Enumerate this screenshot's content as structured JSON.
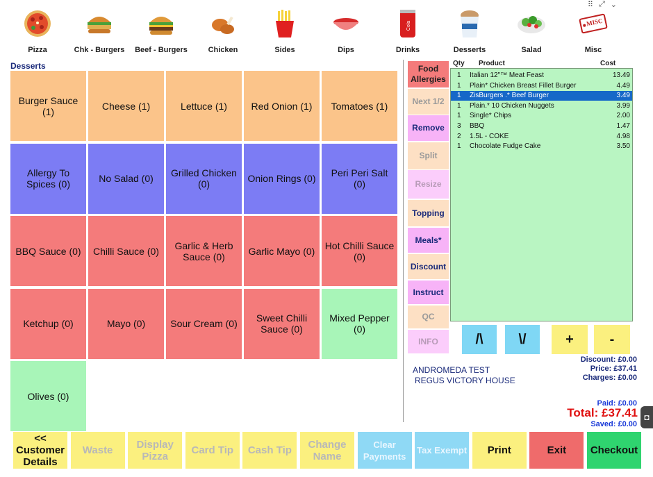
{
  "categories": [
    {
      "label": "Pizza",
      "icon": "pizza-icon"
    },
    {
      "label": "Chk - Burgers",
      "icon": "chicken-burger-icon"
    },
    {
      "label": "Beef - Burgers",
      "icon": "beef-burger-icon"
    },
    {
      "label": "Chicken",
      "icon": "chicken-icon"
    },
    {
      "label": "Sides",
      "icon": "fries-icon"
    },
    {
      "label": "Dips",
      "icon": "dip-bowl-icon"
    },
    {
      "label": "Drinks",
      "icon": "cola-can-icon"
    },
    {
      "label": "Desserts",
      "icon": "ice-cream-tub-icon"
    },
    {
      "label": "Salad",
      "icon": "salad-icon"
    },
    {
      "label": "Misc",
      "icon": "misc-tag-icon",
      "tag": "MISC"
    }
  ],
  "section_title": "Desserts",
  "options": [
    {
      "label": "Burger Sauce (1)",
      "color": "orange"
    },
    {
      "label": "Cheese (1)",
      "color": "orange"
    },
    {
      "label": "Lettuce (1)",
      "color": "orange"
    },
    {
      "label": "Red Onion (1)",
      "color": "orange"
    },
    {
      "label": "Tomatoes (1)",
      "color": "orange"
    },
    {
      "label": "Allergy To Spices (0)",
      "color": "blue"
    },
    {
      "label": "No Salad (0)",
      "color": "blue"
    },
    {
      "label": "Grilled Chicken (0)",
      "color": "blue"
    },
    {
      "label": "Onion Rings (0)",
      "color": "blue"
    },
    {
      "label": "Peri Peri Salt (0)",
      "color": "blue"
    },
    {
      "label": "BBQ Sauce (0)",
      "color": "red"
    },
    {
      "label": "Chilli Sauce (0)",
      "color": "red"
    },
    {
      "label": "Garlic & Herb Sauce (0)",
      "color": "red"
    },
    {
      "label": "Garlic Mayo (0)",
      "color": "red"
    },
    {
      "label": "Hot Chilli Sauce (0)",
      "color": "red"
    },
    {
      "label": "Ketchup (0)",
      "color": "red"
    },
    {
      "label": "Mayo (0)",
      "color": "red"
    },
    {
      "label": "Sour Cream (0)",
      "color": "red"
    },
    {
      "label": "Sweet Chilli Sauce (0)",
      "color": "red"
    },
    {
      "label": "Mixed Pepper (0)",
      "color": "green"
    },
    {
      "label": "Olives (0)",
      "color": "green"
    }
  ],
  "side_buttons": [
    {
      "label": "Food Allergies",
      "style": "red"
    },
    {
      "label": "Next 1/2",
      "style": "peach"
    },
    {
      "label": "Remove",
      "style": "pink"
    },
    {
      "label": "Split",
      "style": "peach"
    },
    {
      "label": "Resize",
      "style": "pink-dim"
    },
    {
      "label": "Topping",
      "style": "peach-txt"
    },
    {
      "label": "Meals*",
      "style": "pink"
    },
    {
      "label": "Discount",
      "style": "peach-txt"
    },
    {
      "label": "Instruct",
      "style": "pink"
    },
    {
      "label": "QC",
      "style": "peach"
    },
    {
      "label": "INFO",
      "style": "pink-dim"
    }
  ],
  "order": {
    "headers": {
      "qty": "Qty",
      "product": "Product",
      "cost": "Cost"
    },
    "rows": [
      {
        "qty": "1",
        "product": "Italian 12\"™ Meat Feast",
        "cost": "13.49",
        "selected": false
      },
      {
        "qty": "1",
        "product": "Plain* Chicken Breast Fillet Burger",
        "cost": "4.49",
        "selected": false
      },
      {
        "qty": "1",
        "product": "ZisBurgers .* Beef Burger",
        "cost": "3.49",
        "selected": true
      },
      {
        "qty": "1",
        "product": "Plain.* 10 Chicken Nuggets",
        "cost": "3.99",
        "selected": false
      },
      {
        "qty": "1",
        "product": "Single* Chips",
        "cost": "2.00",
        "selected": false
      },
      {
        "qty": "3",
        "product": "BBQ",
        "cost": "1.47",
        "selected": false
      },
      {
        "qty": "2",
        "product": "1.5L - COKE",
        "cost": "4.98",
        "selected": false
      },
      {
        "qty": "1",
        "product": "Chocolate Fudge Cake",
        "cost": "3.50",
        "selected": false
      }
    ]
  },
  "nav": {
    "up": "/\\",
    "down": "\\/",
    "plus": "+",
    "minus": "-"
  },
  "customer": {
    "line1": "ANDROMEDA TEST",
    "line2": "REGUS  VICTORY HOUSE"
  },
  "totals": {
    "discount": "Discount: £0.00",
    "price": "Price:  £37.41",
    "charges": "Charges: £0.00",
    "paid": "Paid:  £0.00",
    "total": "Total:  £37.41",
    "saved": "Saved:  £0.00"
  },
  "bottom_buttons": [
    {
      "label": "<<\nCustomer\nDetails",
      "style": "yellow"
    },
    {
      "label": "Waste",
      "style": "yellow-dim"
    },
    {
      "label": "Display\nPizza",
      "style": "yellow-dim"
    },
    {
      "label": "Card Tip",
      "style": "yellow-dim"
    },
    {
      "label": "Cash Tip",
      "style": "yellow-dim"
    },
    {
      "label": "Change\nName",
      "style": "yellow-dim"
    },
    {
      "label": "Clear\nPayments",
      "style": "cyan"
    },
    {
      "label": "Tax Exempt",
      "style": "cyan"
    },
    {
      "label": "Print",
      "style": "yellow"
    },
    {
      "label": "Exit",
      "style": "red"
    },
    {
      "label": "Checkout",
      "style": "green"
    }
  ],
  "colors": {
    "orange": "#fbc48a",
    "blue": "#7c7cf4",
    "red": "#f47b7b",
    "green": "#a8f5b8",
    "order_bg": "#b9f5c2",
    "selected_row": "#1668c8",
    "total_red": "#e01010"
  }
}
